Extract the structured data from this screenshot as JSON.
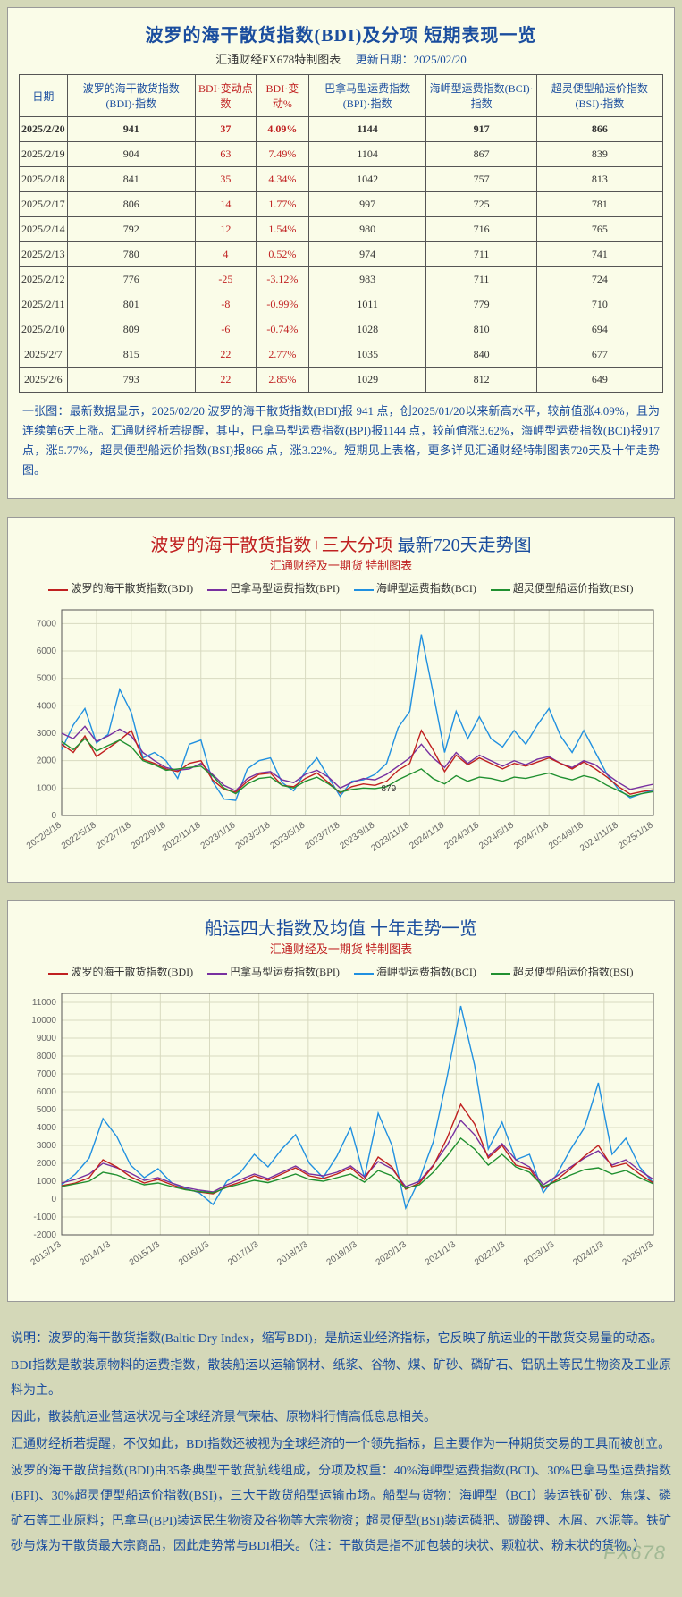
{
  "table_panel": {
    "title": "波罗的海干散货指数(BDI)及分项  短期表现一览",
    "subtitle_left": "汇通财经FX678特制图表",
    "subtitle_right_label": "更新日期：",
    "subtitle_right_value": "2025/02/20",
    "headers": [
      "日期",
      "波罗的海干散货指数(BDI)·指数",
      "BDI·变动点数",
      "BDI·变动%",
      "巴拿马型运费指数(BPI)·指数",
      "海岬型运费指数(BCI)·指数",
      "超灵便型船运价指数(BSI)·指数"
    ],
    "rows": [
      [
        "2025/2/20",
        "941",
        "37",
        "4.09%",
        "1144",
        "917",
        "866"
      ],
      [
        "2025/2/19",
        "904",
        "63",
        "7.49%",
        "1104",
        "867",
        "839"
      ],
      [
        "2025/2/18",
        "841",
        "35",
        "4.34%",
        "1042",
        "757",
        "813"
      ],
      [
        "2025/2/17",
        "806",
        "14",
        "1.77%",
        "997",
        "725",
        "781"
      ],
      [
        "2025/2/14",
        "792",
        "12",
        "1.54%",
        "980",
        "716",
        "765"
      ],
      [
        "2025/2/13",
        "780",
        "4",
        "0.52%",
        "974",
        "711",
        "741"
      ],
      [
        "2025/2/12",
        "776",
        "-25",
        "-3.12%",
        "983",
        "711",
        "724"
      ],
      [
        "2025/2/11",
        "801",
        "-8",
        "-0.99%",
        "1011",
        "779",
        "710"
      ],
      [
        "2025/2/10",
        "809",
        "-6",
        "-0.74%",
        "1028",
        "810",
        "694"
      ],
      [
        "2025/2/7",
        "815",
        "22",
        "2.77%",
        "1035",
        "840",
        "677"
      ],
      [
        "2025/2/6",
        "793",
        "22",
        "2.85%",
        "1029",
        "812",
        "649"
      ]
    ],
    "note": "一张图：最新数据显示，2025/02/20 波罗的海干散货指数(BDI)报 941 点，创2025/01/20以来新高水平，较前值涨4.09%，且为连续第6天上涨。汇通财经析若提醒，其中，巴拿马型运费指数(BPI)报1144 点，较前值涨3.62%，海岬型运费指数(BCI)报917 点，涨5.77%，超灵便型船运价指数(BSI)报866 点，涨3.22%。短期见上表格，更多详见汇通财经特制图表720天及十年走势图。"
  },
  "chart720": {
    "title_red": "波罗的海干散货指数+三大分项",
    "title_blue": "最新720天走势图",
    "subtitle": "汇通财经及一期货  特制图表",
    "legend": [
      {
        "label": "波罗的海干散货指数(BDI)",
        "color": "#c02020"
      },
      {
        "label": "巴拿马型运费指数(BPI)",
        "color": "#7830a0"
      },
      {
        "label": "海岬型运费指数(BCI)",
        "color": "#2090e0"
      },
      {
        "label": "超灵便型船运价指数(BSI)",
        "color": "#209030"
      }
    ],
    "y": {
      "min": 0,
      "max": 7500,
      "ticks": [
        0,
        1000,
        2000,
        3000,
        4000,
        5000,
        6000,
        7000
      ]
    },
    "x_labels": [
      "2022/3/18",
      "2022/5/18",
      "2022/7/18",
      "2022/9/18",
      "2022/11/18",
      "2023/1/18",
      "2023/3/18",
      "2023/5/18",
      "2023/7/18",
      "2023/9/18",
      "2023/11/18",
      "2024/1/18",
      "2024/3/18",
      "2024/5/18",
      "2024/7/18",
      "2024/9/18",
      "2024/11/18",
      "2025/1/18"
    ],
    "anno_label": "879",
    "colors": {
      "bg": "#fafce8",
      "grid": "#d8dac0",
      "axis": "#555",
      "title": "#c02020",
      "title2": "#1a4d9e",
      "text": "#666"
    },
    "font_axis": 10,
    "series": {
      "bdi": [
        2600,
        2300,
        2900,
        2150,
        2450,
        2750,
        3100,
        2050,
        1900,
        1700,
        1600,
        1900,
        2000,
        1300,
        950,
        850,
        1250,
        1500,
        1550,
        1100,
        1050,
        1350,
        1550,
        1200,
        820,
        1050,
        1150,
        1100,
        1250,
        1650,
        1900,
        3100,
        2400,
        1600,
        2200,
        1850,
        2100,
        1900,
        1700,
        1900,
        1800,
        1950,
        2100,
        1900,
        1700,
        1950,
        1700,
        1400,
        1050,
        780,
        870,
        940
      ],
      "bpi": [
        3000,
        2800,
        3250,
        2700,
        2900,
        3150,
        2900,
        2300,
        2000,
        1750,
        1650,
        1700,
        1900,
        1500,
        1100,
        900,
        1350,
        1550,
        1600,
        1300,
        1200,
        1500,
        1650,
        1400,
        1000,
        1200,
        1350,
        1300,
        1500,
        1800,
        2100,
        2600,
        2100,
        1750,
        2300,
        1900,
        2200,
        2000,
        1800,
        2000,
        1850,
        2050,
        2150,
        1900,
        1750,
        2000,
        1850,
        1500,
        1200,
        950,
        1050,
        1140
      ],
      "bci": [
        2400,
        3300,
        3900,
        2650,
        2950,
        4600,
        3750,
        2100,
        2300,
        2000,
        1350,
        2600,
        2750,
        1250,
        600,
        550,
        1700,
        2000,
        2100,
        1200,
        900,
        1600,
        2100,
        1400,
        700,
        1250,
        1300,
        1500,
        1900,
        3200,
        3800,
        6600,
        4500,
        2300,
        3800,
        2800,
        3600,
        2800,
        2500,
        3100,
        2600,
        3300,
        3900,
        2900,
        2300,
        3100,
        2300,
        1500,
        950,
        650,
        800,
        920
      ],
      "bsi": [
        2700,
        2400,
        2800,
        2350,
        2550,
        2750,
        2500,
        2000,
        1850,
        1650,
        1700,
        1750,
        1800,
        1450,
        1000,
        800,
        1150,
        1350,
        1400,
        1100,
        1000,
        1250,
        1400,
        1150,
        850,
        950,
        1000,
        980,
        1050,
        1300,
        1500,
        1700,
        1350,
        1150,
        1450,
        1250,
        1400,
        1350,
        1250,
        1400,
        1350,
        1450,
        1550,
        1400,
        1300,
        1450,
        1350,
        1100,
        900,
        700,
        800,
        870
      ]
    }
  },
  "chart10y": {
    "title": "船运四大指数及均值 十年走势一览",
    "subtitle": "汇通财经及一期货 特制图表",
    "legend": [
      {
        "label": "波罗的海干散货指数(BDI)",
        "color": "#c02020"
      },
      {
        "label": "巴拿马型运费指数(BPI)",
        "color": "#7830a0"
      },
      {
        "label": "海岬型运费指数(BCI)",
        "color": "#2090e0"
      },
      {
        "label": "超灵便型船运价指数(BSI)",
        "color": "#209030"
      }
    ],
    "y": {
      "min": -2000,
      "max": 11500,
      "ticks": [
        -2000,
        -1000,
        0,
        1000,
        2000,
        3000,
        4000,
        5000,
        6000,
        7000,
        8000,
        9000,
        10000,
        11000
      ]
    },
    "x_labels": [
      "2013/1/3",
      "2014/1/3",
      "2015/1/3",
      "2016/1/3",
      "2017/1/3",
      "2018/1/3",
      "2019/1/3",
      "2020/1/3",
      "2021/1/3",
      "2022/1/3",
      "2023/1/3",
      "2024/1/3",
      "2025/1/3"
    ],
    "colors": {
      "bg": "#fafce8",
      "grid": "#d8dac0",
      "axis": "#555",
      "title": "#1a4d9e",
      "text": "#666"
    },
    "font_axis": 10,
    "series": {
      "bdi": [
        750,
        900,
        1200,
        2200,
        1800,
        1250,
        900,
        1100,
        800,
        550,
        400,
        300,
        700,
        950,
        1300,
        1050,
        1400,
        1750,
        1300,
        1150,
        1400,
        1750,
        1100,
        2350,
        1800,
        550,
        900,
        1850,
        3400,
        5300,
        4200,
        2300,
        3000,
        1900,
        1700,
        600,
        1100,
        1700,
        2400,
        3000,
        1800,
        2000,
        1400,
        900
      ],
      "bpi": [
        900,
        1100,
        1400,
        2000,
        1750,
        1450,
        1050,
        1200,
        900,
        650,
        500,
        400,
        800,
        1100,
        1400,
        1150,
        1500,
        1850,
        1400,
        1300,
        1500,
        1850,
        1250,
        2100,
        1700,
        700,
        1000,
        1900,
        3000,
        4400,
        3600,
        2400,
        3100,
        2200,
        1800,
        800,
        1300,
        1800,
        2300,
        2700,
        1900,
        2200,
        1600,
        1100
      ],
      "bci": [
        800,
        1400,
        2300,
        4500,
        3500,
        1900,
        1200,
        1700,
        900,
        600,
        350,
        -300,
        1000,
        1500,
        2500,
        1800,
        2800,
        3600,
        2000,
        1200,
        2400,
        4000,
        1200,
        4800,
        3000,
        -500,
        1100,
        3200,
        6800,
        10800,
        7500,
        2800,
        4300,
        2200,
        2500,
        350,
        1400,
        2800,
        4000,
        6500,
        2500,
        3400,
        1800,
        900
      ],
      "bsi": [
        700,
        850,
        1000,
        1500,
        1350,
        1050,
        800,
        900,
        700,
        520,
        420,
        350,
        650,
        850,
        1050,
        920,
        1150,
        1400,
        1100,
        1000,
        1200,
        1400,
        950,
        1600,
        1300,
        600,
        800,
        1500,
        2400,
        3400,
        2800,
        1900,
        2500,
        1800,
        1500,
        700,
        1000,
        1350,
        1650,
        1750,
        1400,
        1600,
        1200,
        850
      ]
    }
  },
  "explain": [
    "说明：波罗的海干散货指数(Baltic Dry Index，缩写BDI)，是航运业经济指标，它反映了航运业的干散货交易量的动态。",
    "BDI指数是散装原物料的运费指数，散装船运以运输钢材、纸浆、谷物、煤、矿砂、磷矿石、铝矾土等民生物资及工业原料为主。",
    "因此，散装航运业营运状况与全球经济景气荣枯、原物料行情高低息息相关。",
    "汇通财经析若提醒，不仅如此，BDI指数还被视为全球经济的一个领先指标，且主要作为一种期货交易的工具而被创立。",
    "波罗的海干散货指数(BDI)由35条典型干散货航线组成，分项及权重：40%海岬型运费指数(BCI)、30%巴拿马型运费指数(BPI)、30%超灵便型船运价指数(BSI)，三大干散货船型运输市场。船型与货物：海岬型（BCI）装运铁矿砂、焦煤、磷矿石等工业原料；巴拿马(BPI)装运民生物资及谷物等大宗物资；超灵便型(BSI)装运磷肥、碳酸钾、木屑、水泥等。铁矿砂与煤为干散货最大宗商品，因此走势常与BDI相关。（注：干散货是指不加包装的块状、颗粒状、粉末状的货物。）"
  ],
  "watermark": "FX678"
}
